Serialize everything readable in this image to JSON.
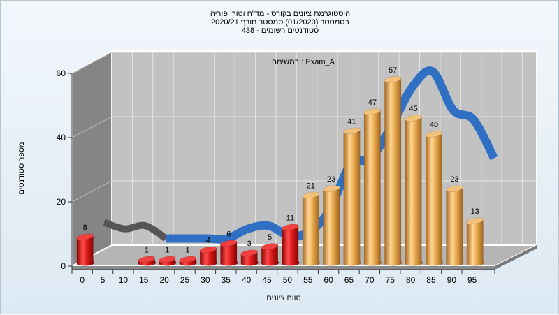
{
  "chart_data": {
    "type": "bar",
    "title_lines": [
      "היסטוגרמת ציונים בקורס - מד\"ח וטורי פוריה",
      "בסמסטר  (01/2020)  סמסטר חורף 2020/21",
      "סטודנטים רשומים - 438"
    ],
    "legend_label": "במשימה : Exam_A",
    "xlabel": "טווח ציונים",
    "ylabel": "מספר סטודנטים",
    "x_ticks": [
      "0",
      "5",
      "10",
      "15",
      "20",
      "25",
      "30",
      "35",
      "40",
      "45",
      "50",
      "55",
      "60",
      "65",
      "70",
      "75",
      "80",
      "85",
      "90",
      "95"
    ],
    "y_ticks": [
      "0",
      "20",
      "40",
      "60"
    ],
    "ylim": [
      0,
      60
    ],
    "categories": [
      "0",
      "5",
      "10",
      "15",
      "20",
      "25",
      "30",
      "35",
      "40",
      "45",
      "50",
      "55",
      "60",
      "65",
      "70",
      "75",
      "80",
      "85",
      "90",
      "95"
    ],
    "values": [
      8,
      null,
      null,
      1,
      1,
      1,
      4,
      6,
      3,
      5,
      11,
      21,
      23,
      41,
      47,
      57,
      45,
      40,
      23,
      13
    ],
    "fail_color": "#d81818",
    "pass_color": "#e7a84b",
    "curve_color": "#2f6fc4",
    "curve_fail_color": "#555555",
    "curve_values": [
      10,
      8,
      9,
      5,
      5,
      5,
      5,
      8,
      9,
      6,
      7,
      14,
      28,
      30,
      40,
      52,
      57,
      45,
      42,
      30
    ]
  }
}
